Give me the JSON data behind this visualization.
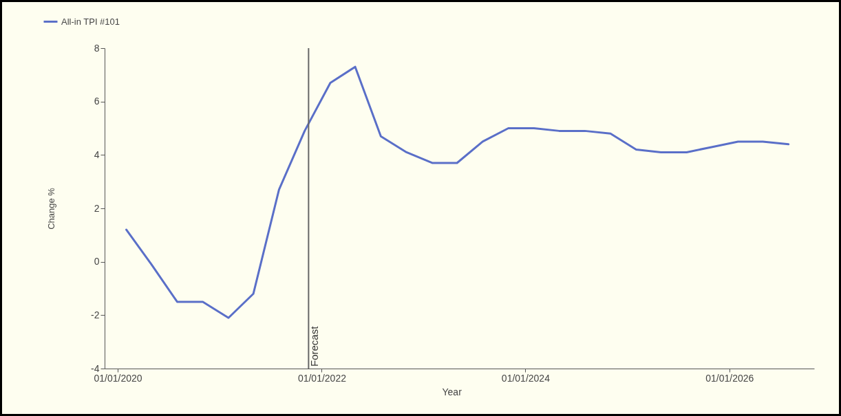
{
  "chart_data": {
    "type": "line",
    "xlabel": "Year",
    "ylabel": "Change %",
    "x": [
      "2020-02-01",
      "2020-05-01",
      "2020-08-01",
      "2020-11-01",
      "2021-02-01",
      "2021-05-01",
      "2021-08-01",
      "2021-11-01",
      "2022-02-01",
      "2022-05-01",
      "2022-08-01",
      "2022-11-01",
      "2023-02-01",
      "2023-05-01",
      "2023-08-01",
      "2023-11-01",
      "2024-02-01",
      "2024-05-01",
      "2024-08-01",
      "2024-11-01",
      "2025-02-01",
      "2025-05-01",
      "2025-08-01",
      "2025-11-01",
      "2026-02-01",
      "2026-05-01",
      "2026-08-01"
    ],
    "series": [
      {
        "name": "All-in TPI #101",
        "color": "#5a6fc8",
        "values": [
          1.2,
          -0.1,
          -1.5,
          -1.5,
          -2.1,
          -1.2,
          2.7,
          4.9,
          6.7,
          7.3,
          4.7,
          4.1,
          3.7,
          3.7,
          4.5,
          5.0,
          5.0,
          4.9,
          4.9,
          4.8,
          4.2,
          4.1,
          4.1,
          4.3,
          4.5,
          4.5,
          4.4
        ]
      }
    ],
    "xlim": [
      "2019-11-15",
      "2026-11-01"
    ],
    "xticks": [
      {
        "value": "2020-01-01",
        "label": "01/01/2020"
      },
      {
        "value": "2022-01-01",
        "label": "01/01/2022"
      },
      {
        "value": "2024-01-01",
        "label": "01/01/2024"
      },
      {
        "value": "2026-01-01",
        "label": "01/01/2026"
      }
    ],
    "ylim": [
      -4,
      8
    ],
    "yticks": [
      -4,
      -2,
      0,
      2,
      4,
      6,
      8
    ],
    "ref_lines": [
      {
        "axis": "x",
        "value": "2021-11-15",
        "label": "Forecast",
        "color": "#666666"
      }
    ],
    "grid": false,
    "legend": "top left",
    "marker": "none",
    "line_style": "solid"
  }
}
